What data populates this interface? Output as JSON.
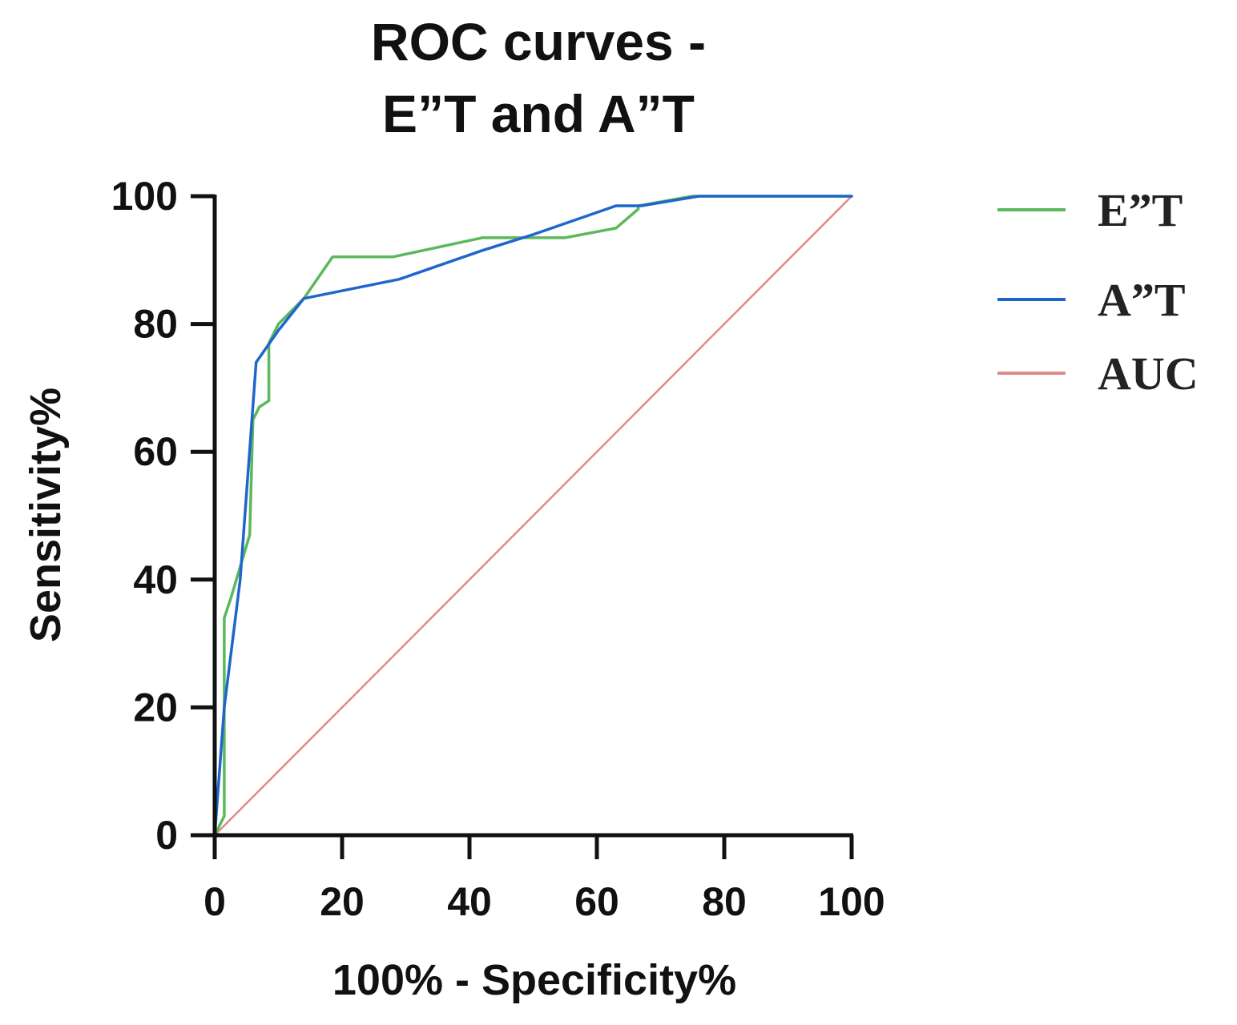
{
  "chart_data": {
    "type": "line",
    "title": [
      "ROC curves -",
      "E”T and A”T"
    ],
    "xlabel": "100% - Specificity%",
    "ylabel": "Sensitivity%",
    "xlim": [
      0,
      100
    ],
    "ylim": [
      0,
      100
    ],
    "xticks": [
      0,
      20,
      40,
      60,
      80,
      100
    ],
    "yticks": [
      0,
      20,
      40,
      60,
      80,
      100
    ],
    "grid": false,
    "legend_position": "right",
    "series": [
      {
        "name": "E”T",
        "color": "#5cb85c",
        "x": [
          0,
          1.5,
          1.5,
          2.5,
          5.5,
          6,
          7,
          8.5,
          8.5,
          10,
          14,
          18.5,
          28,
          42,
          55,
          63,
          66.5,
          66.5,
          75,
          100
        ],
        "y": [
          0,
          3,
          34,
          37,
          47,
          65,
          67,
          68,
          77,
          80,
          84,
          90.5,
          90.5,
          93.5,
          93.5,
          95,
          98,
          98.5,
          100,
          100
        ]
      },
      {
        "name": "A”T",
        "color": "#1f66cc",
        "x": [
          0,
          1.5,
          4,
          6.5,
          10,
          14,
          29,
          42,
          50,
          63,
          67,
          76,
          100
        ],
        "y": [
          0,
          20,
          40,
          74,
          79,
          84,
          87,
          91.5,
          94,
          98.5,
          98.5,
          100,
          100
        ]
      },
      {
        "name": "AUC",
        "color": "#e08a8a",
        "x": [
          0,
          100
        ],
        "y": [
          0,
          100
        ]
      }
    ]
  }
}
